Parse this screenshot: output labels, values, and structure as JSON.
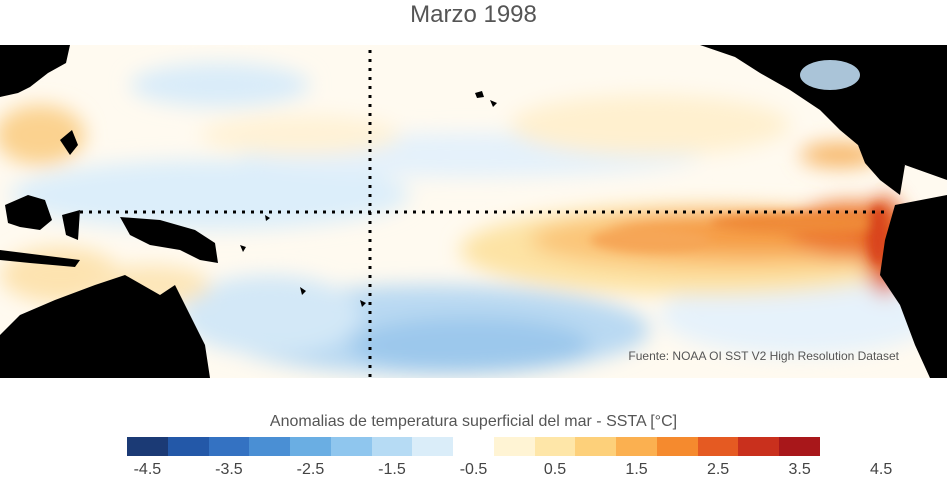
{
  "title": "Marzo 1998",
  "source": "Fuente: NOAA OI SST V2 High Resolution Dataset",
  "colorbar": {
    "label": "Anomalias de temperatura superficial del mar - SSTA  [°C]",
    "colors": [
      "#1b3a75",
      "#2358a8",
      "#3472c2",
      "#4a8fd4",
      "#6aaee3",
      "#8fc6ee",
      "#b6dbf4",
      "#daedf9",
      "#ffffff",
      "#fff4d4",
      "#fee6a8",
      "#fdd07a",
      "#fbb050",
      "#f58a2e",
      "#e55a22",
      "#c9301d",
      "#a8171a"
    ],
    "ticks": [
      "-4.5",
      "-3.5",
      "-2.5",
      "-1.5",
      "-0.5",
      "0.5",
      "1.5",
      "2.5",
      "3.5",
      "4.5"
    ]
  },
  "map": {
    "land_color": "#000000",
    "reference_lines": [
      "equator",
      "date-line"
    ]
  }
}
